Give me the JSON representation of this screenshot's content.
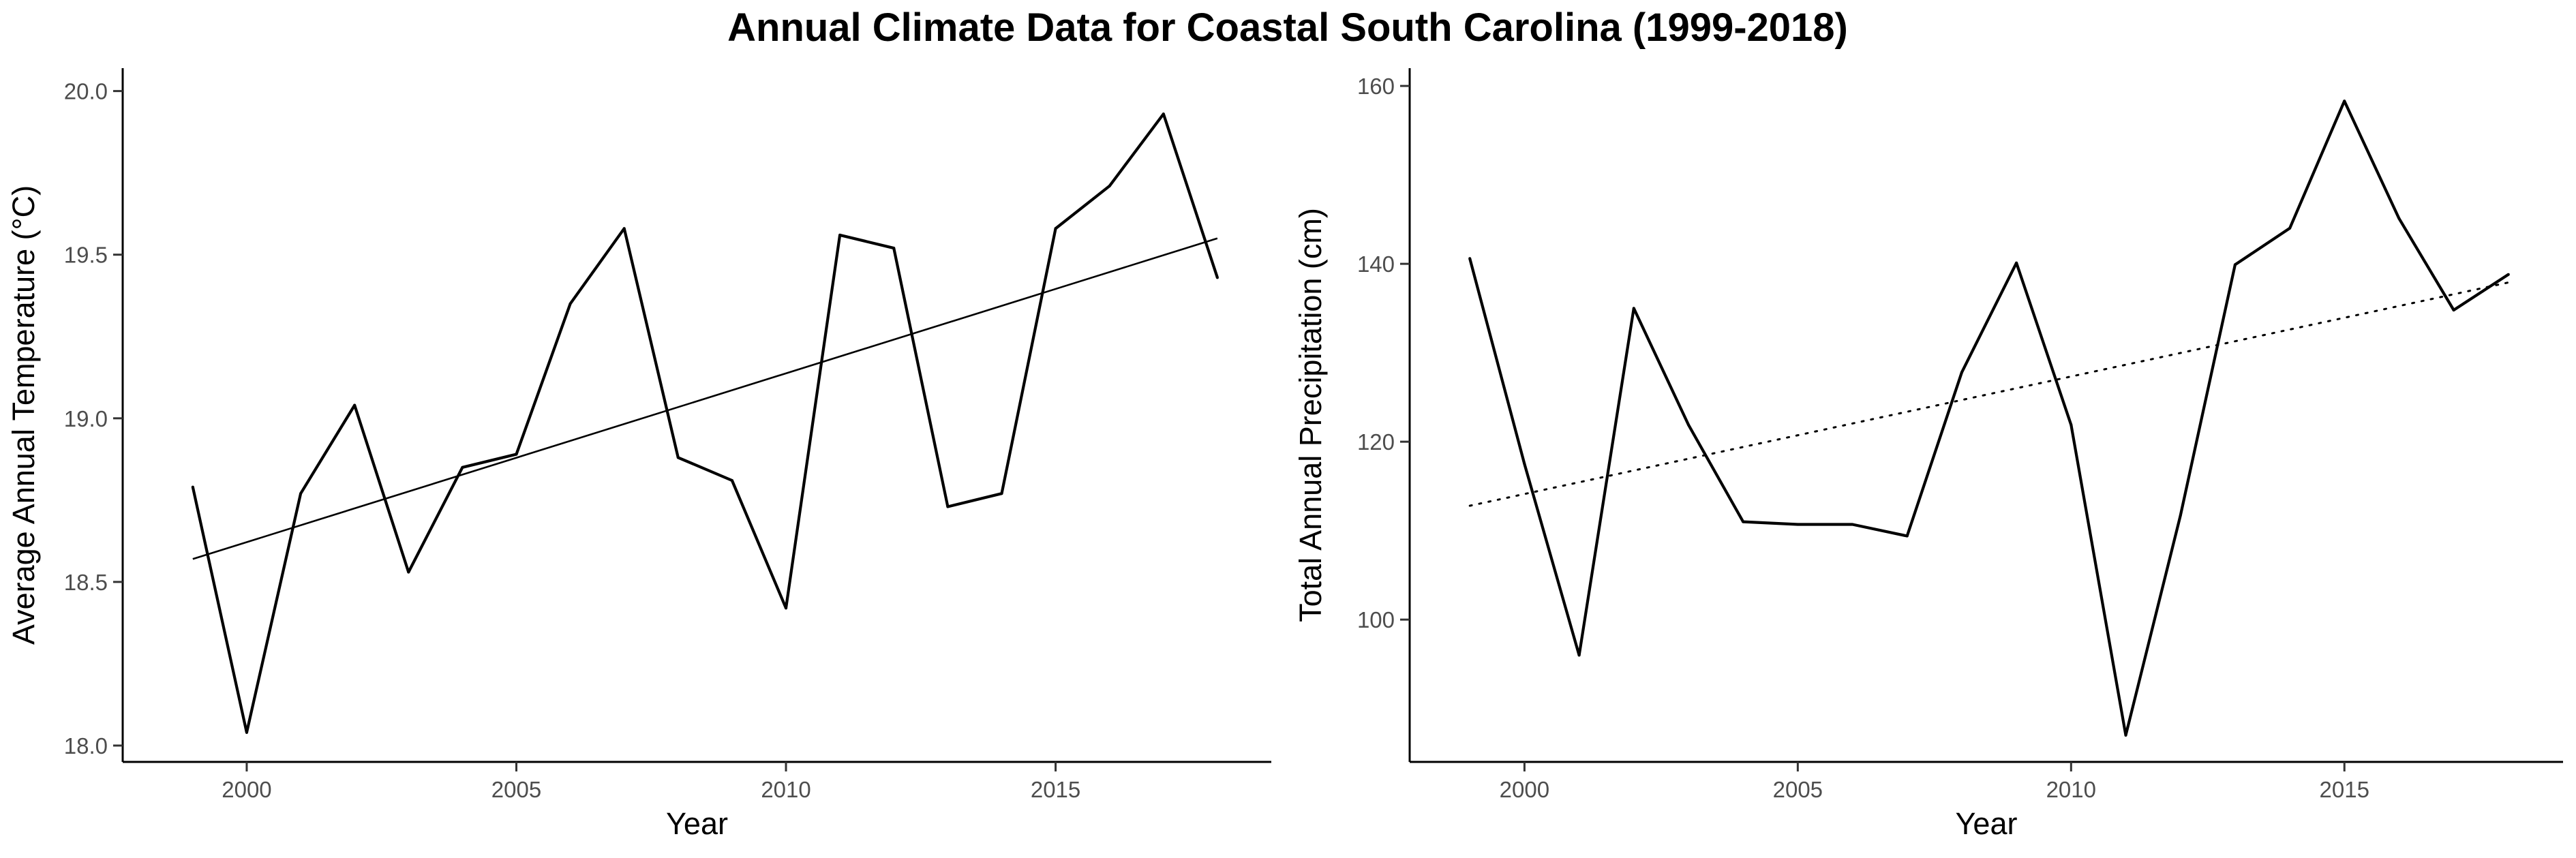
{
  "figure": {
    "title": "Annual Climate Data for Coastal South Carolina (1999-2018)"
  },
  "chart_data": [
    {
      "type": "line",
      "xlabel": "Year",
      "ylabel": "Average Annual Temperature (°C)",
      "xlim": [
        1997.7,
        2019.0
      ],
      "ylim": [
        17.95,
        20.07
      ],
      "x_ticks": [
        2000,
        2005,
        2010,
        2015
      ],
      "y_ticks": [
        18.0,
        18.5,
        19.0,
        19.5,
        20.0
      ],
      "y_tick_labels": [
        "18.0",
        "18.5",
        "19.0",
        "19.5",
        "20.0"
      ],
      "grid": false,
      "legend": "none",
      "series": [
        {
          "style": "solid",
          "x": [
            1999,
            2000,
            2001,
            2002,
            2003,
            2004,
            2005,
            2006,
            2007,
            2008,
            2009,
            2010,
            2011,
            2012,
            2013,
            2014,
            2015,
            2016,
            2017,
            2018
          ],
          "values": [
            18.79,
            18.04,
            18.77,
            19.04,
            18.53,
            18.85,
            18.89,
            19.35,
            19.58,
            18.88,
            18.81,
            18.42,
            19.56,
            19.52,
            18.73,
            18.77,
            19.58,
            19.71,
            19.93,
            19.43
          ]
        }
      ],
      "trend_line": {
        "style": "solid",
        "x": [
          1999,
          2018
        ],
        "values": [
          18.57,
          19.55
        ]
      }
    },
    {
      "type": "line",
      "xlabel": "Year",
      "ylabel": "Total Annual Precipitation (cm)",
      "xlim": [
        1997.9,
        2019.0
      ],
      "ylim": [
        84.0,
        162.0
      ],
      "x_ticks": [
        2000,
        2005,
        2010,
        2015
      ],
      "y_ticks": [
        100,
        120,
        140,
        160
      ],
      "y_tick_labels": [
        "100",
        "120",
        "140",
        "160"
      ],
      "grid": false,
      "legend": "none",
      "series": [
        {
          "style": "solid",
          "x": [
            1999,
            2000,
            2001,
            2002,
            2003,
            2004,
            2005,
            2006,
            2007,
            2008,
            2009,
            2010,
            2011,
            2012,
            2013,
            2014,
            2015,
            2016,
            2017,
            2018
          ],
          "values": [
            140.6,
            117.5,
            96.0,
            135.0,
            121.9,
            111.0,
            110.7,
            110.7,
            109.4,
            127.8,
            140.1,
            121.9,
            87.0,
            111.7,
            139.9,
            144.0,
            158.3,
            145.1,
            134.8,
            138.8
          ]
        }
      ],
      "trend_line": {
        "style": "dotted",
        "x": [
          1999,
          2018
        ],
        "values": [
          112.8,
          137.9
        ]
      }
    }
  ]
}
